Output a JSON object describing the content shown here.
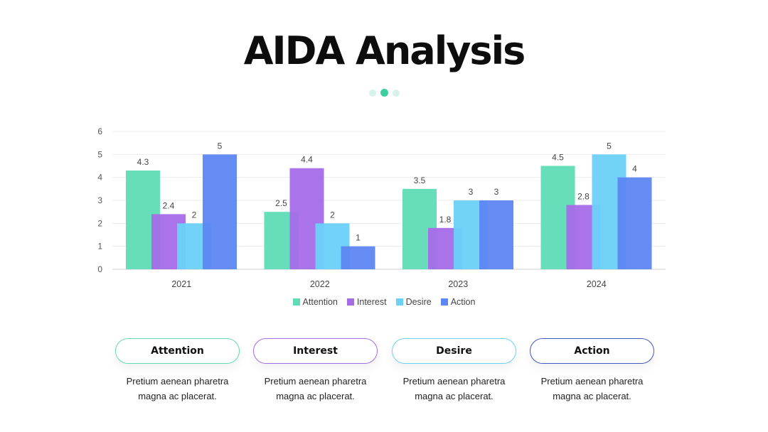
{
  "title": "AIDA Analysis",
  "dot_colors": [
    "#d6f2ea",
    "#3ccfa0",
    "#d6f2ea"
  ],
  "chart_data": {
    "type": "bar",
    "categories": [
      "2021",
      "2022",
      "2023",
      "2024"
    ],
    "series": [
      {
        "name": "Attention",
        "color": "#5fdcb6",
        "values": [
          4.3,
          2.5,
          3.5,
          4.5
        ]
      },
      {
        "name": "Interest",
        "color": "#a56ce8",
        "values": [
          2.4,
          4.4,
          1.8,
          2.8
        ]
      },
      {
        "name": "Desire",
        "color": "#6cd0f8",
        "values": [
          2,
          2,
          3,
          5
        ]
      },
      {
        "name": "Action",
        "color": "#5c86f2",
        "values": [
          5,
          1,
          3,
          4
        ]
      }
    ],
    "ylim": [
      0,
      6
    ],
    "yticks": [
      "0",
      "1",
      "2",
      "3",
      "4",
      "5",
      "6"
    ],
    "grid": true,
    "legend": "bottom"
  },
  "cards": [
    {
      "label": "Attention",
      "color": "#5fdcb6",
      "text_line1": "Pretium aenean pharetra",
      "text_line2": "magna ac placerat."
    },
    {
      "label": "Interest",
      "color": "#a56ce8",
      "text_line1": "Pretium aenean pharetra",
      "text_line2": "magna ac placerat."
    },
    {
      "label": "Desire",
      "color": "#6cd0f8",
      "text_line1": "Pretium aenean pharetra",
      "text_line2": "magna ac placerat."
    },
    {
      "label": "Action",
      "color": "#3d5bc4",
      "text_line1": "Pretium aenean pharetra",
      "text_line2": "magna ac placerat."
    }
  ]
}
